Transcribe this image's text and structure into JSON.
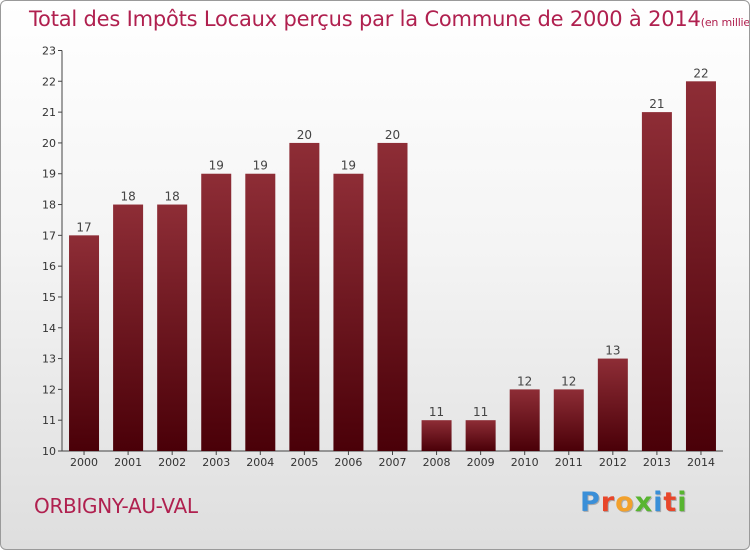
{
  "title": "Total des Impôts Locaux perçus par la Commune de 2000 à 2014",
  "title_unit": "(en milliers d'€)",
  "commune": "ORBIGNY-AU-VAL",
  "logo": {
    "letters": [
      "P",
      "r",
      "o",
      "x",
      "i",
      "t",
      "i"
    ],
    "colors": [
      "#3a8fd8",
      "#e8462a",
      "#f2a12c",
      "#58b530",
      "#3a8fd8",
      "#e8462a",
      "#58b530"
    ]
  },
  "colors": {
    "accent": "#b0204f",
    "bar_top": "#8e2d36",
    "bar_bottom": "#4a0008"
  },
  "chart_data": {
    "type": "bar",
    "title": "Total des Impôts Locaux perçus par la Commune de 2000 à 2014",
    "xlabel": "",
    "ylabel": "en milliers d'€",
    "categories": [
      "2000",
      "2001",
      "2002",
      "2003",
      "2004",
      "2005",
      "2006",
      "2007",
      "2008",
      "2009",
      "2010",
      "2011",
      "2012",
      "2013",
      "2014"
    ],
    "values": [
      17,
      18,
      18,
      19,
      19,
      20,
      19,
      20,
      11,
      11,
      12,
      12,
      13,
      21,
      22
    ],
    "ylim": [
      10,
      23
    ],
    "yticks": [
      10,
      11,
      12,
      13,
      14,
      15,
      16,
      17,
      18,
      19,
      20,
      21,
      22,
      23
    ],
    "grid": false
  }
}
